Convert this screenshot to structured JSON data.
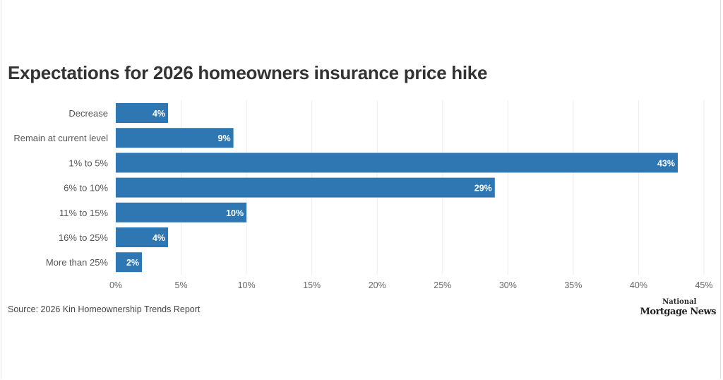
{
  "chart_data": {
    "type": "bar",
    "orientation": "horizontal",
    "title": "Expectations for 2026 homeowners insurance price hike",
    "categories": [
      "Decrease",
      "Remain at current level",
      "1% to 5%",
      "6% to 10%",
      "11% to 15%",
      "16% to 25%",
      "More than 25%"
    ],
    "values": [
      4,
      9,
      43,
      29,
      10,
      4,
      2
    ],
    "data_labels": [
      "4%",
      "9%",
      "43%",
      "29%",
      "10%",
      "4%",
      "2%"
    ],
    "xlim": [
      0,
      45
    ],
    "xticks": [
      0,
      5,
      10,
      15,
      20,
      25,
      30,
      35,
      40,
      45
    ],
    "xtick_labels": [
      "0%",
      "5%",
      "10%",
      "15%",
      "20%",
      "25%",
      "30%",
      "35%",
      "40%",
      "45%"
    ],
    "grid": "vertical",
    "bar_color": "#2f77b3",
    "source": "Source: 2026 Kin Homeownership Trends Report"
  },
  "logo": {
    "line1": "National",
    "line2": "Mortgage News"
  }
}
